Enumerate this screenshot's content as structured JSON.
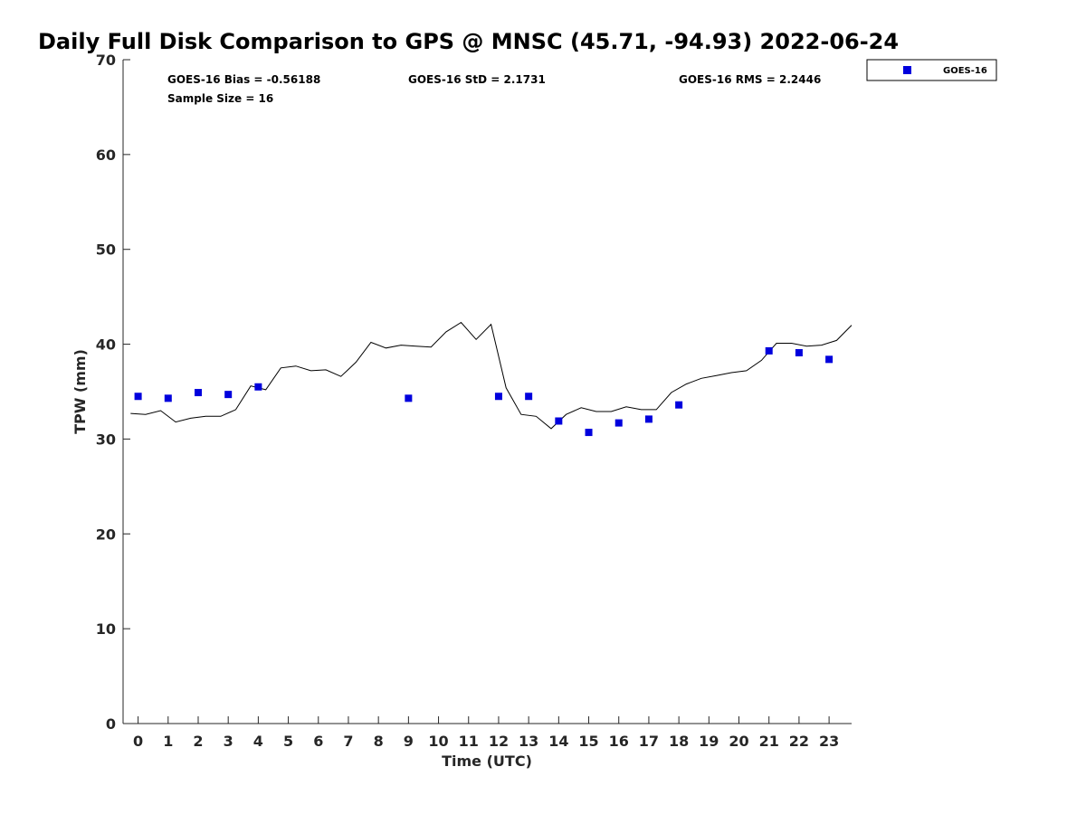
{
  "chart_data": {
    "type": "scatter",
    "title": "Daily Full Disk Comparison to GPS @ MNSC (45.71, -94.93) 2022-06-24",
    "xlabel": "Time (UTC)",
    "ylabel": "TPW (mm)",
    "xlim": [
      -0.5,
      23.75
    ],
    "ylim": [
      0,
      70
    ],
    "xticks": [
      0,
      1,
      2,
      3,
      4,
      5,
      6,
      7,
      8,
      9,
      10,
      11,
      12,
      13,
      14,
      15,
      16,
      17,
      18,
      19,
      20,
      21,
      22,
      23
    ],
    "yticks": [
      0,
      10,
      20,
      30,
      40,
      50,
      60,
      70
    ],
    "grid": false,
    "legend": {
      "position": "outside-top-right",
      "entries": [
        "GOES-16"
      ]
    },
    "stats": {
      "bias": "GOES-16 Bias = -0.56188",
      "std": "GOES-16 StD = 2.1731",
      "rms": "GOES-16 RMS = 2.2446",
      "sample": "Sample Size = 16"
    },
    "series": [
      {
        "name": "GOES-16",
        "kind": "scatter",
        "color": "#0000dd",
        "marker": "square",
        "x": [
          0,
          1,
          2,
          3,
          4,
          9,
          12,
          13,
          14,
          15,
          16,
          17,
          18,
          21,
          22,
          23
        ],
        "y": [
          34.5,
          34.3,
          34.9,
          34.7,
          35.5,
          34.3,
          34.5,
          34.5,
          31.9,
          30.7,
          31.7,
          32.1,
          33.6,
          39.3,
          39.1,
          38.4
        ]
      },
      {
        "kind": "line",
        "color": "#000000",
        "x": [
          -0.25,
          0.25,
          0.75,
          1.25,
          1.75,
          2.25,
          2.75,
          3.25,
          3.75,
          4.25,
          4.75,
          5.25,
          5.75,
          6.25,
          6.75,
          7.25,
          7.75,
          8.25,
          8.75,
          9.25,
          9.75,
          10.25,
          10.75,
          11.25,
          11.75,
          12.25,
          12.75,
          13.25,
          13.75,
          14.25,
          14.75,
          15.25,
          15.75,
          16.25,
          16.75,
          17.25,
          17.75,
          18.25,
          18.75,
          19.25,
          19.75,
          20.25,
          20.75,
          21.25,
          21.75,
          22.25,
          22.75,
          23.25,
          23.75
        ],
        "y": [
          32.7,
          32.6,
          33.0,
          31.8,
          32.2,
          32.4,
          32.4,
          33.1,
          35.6,
          35.2,
          37.5,
          37.7,
          37.2,
          37.3,
          36.6,
          38.1,
          40.2,
          39.6,
          39.9,
          39.8,
          39.7,
          41.3,
          42.3,
          40.5,
          42.1,
          35.4,
          32.6,
          32.4,
          31.1,
          32.6,
          33.3,
          32.9,
          32.9,
          33.4,
          33.1,
          33.1,
          34.9,
          35.8,
          36.4,
          36.7,
          37.0,
          37.2,
          38.3,
          40.1,
          40.1,
          39.8,
          39.9,
          40.4,
          42.0
        ]
      }
    ]
  }
}
